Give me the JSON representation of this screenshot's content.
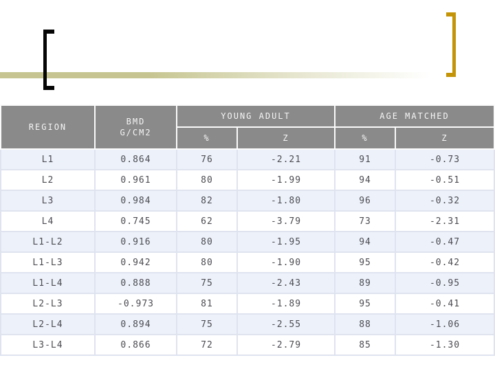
{
  "slide": {
    "background": "#ffffff",
    "decorations": {
      "accent_band_color": "#c6c591",
      "left_bracket_color": "#050505",
      "right_bracket_color": "#c49408"
    }
  },
  "table": {
    "header": {
      "region": "REGION",
      "bmd_line1": "BMD",
      "bmd_line2": "G/CM2",
      "young_adult": "YOUNG ADULT",
      "age_matched": "AGE MATCHED",
      "percent": "%",
      "z": "Z"
    },
    "style": {
      "header_bg": "#8a8a8a",
      "header_text": "#f6f6f6",
      "row_alt_bg": "#edf1fa",
      "row_bg": "#ffffff",
      "cell_text": "#4c4c52",
      "grid_color": "#dee3ef"
    },
    "rows": [
      {
        "region": "L1",
        "bmd": "0.864",
        "ya_pct": "76",
        "ya_z": "-2.21",
        "am_pct": "91",
        "am_z": "-0.73"
      },
      {
        "region": "L2",
        "bmd": "0.961",
        "ya_pct": "80",
        "ya_z": "-1.99",
        "am_pct": "94",
        "am_z": "-0.51"
      },
      {
        "region": "L3",
        "bmd": "0.984",
        "ya_pct": "82",
        "ya_z": "-1.80",
        "am_pct": "96",
        "am_z": "-0.32"
      },
      {
        "region": "L4",
        "bmd": "0.745",
        "ya_pct": "62",
        "ya_z": "-3.79",
        "am_pct": "73",
        "am_z": "-2.31"
      },
      {
        "region": "L1-L2",
        "bmd": "0.916",
        "ya_pct": "80",
        "ya_z": "-1.95",
        "am_pct": "94",
        "am_z": "-0.47"
      },
      {
        "region": "L1-L3",
        "bmd": "0.942",
        "ya_pct": "80",
        "ya_z": "-1.90",
        "am_pct": "95",
        "am_z": "-0.42"
      },
      {
        "region": "L1-L4",
        "bmd": "0.888",
        "ya_pct": "75",
        "ya_z": "-2.43",
        "am_pct": "89",
        "am_z": "-0.95"
      },
      {
        "region": "L2-L3",
        "bmd": "-0.973",
        "ya_pct": "81",
        "ya_z": "-1.89",
        "am_pct": "95",
        "am_z": "-0.41"
      },
      {
        "region": "L2-L4",
        "bmd": "0.894",
        "ya_pct": "75",
        "ya_z": "-2.55",
        "am_pct": "88",
        "am_z": "-1.06"
      },
      {
        "region": "L3-L4",
        "bmd": "0.866",
        "ya_pct": "72",
        "ya_z": "-2.79",
        "am_pct": "85",
        "am_z": "-1.30"
      }
    ]
  }
}
